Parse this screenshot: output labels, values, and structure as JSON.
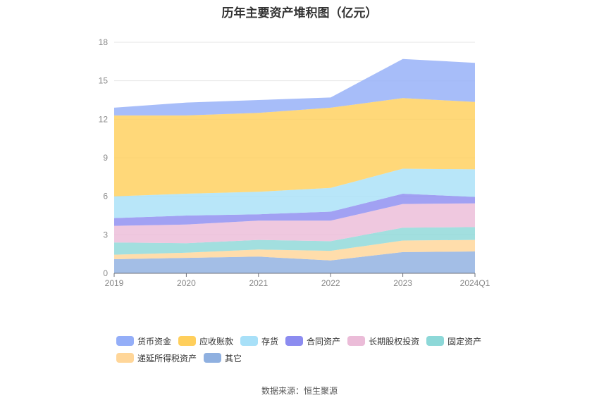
{
  "chart_data": {
    "type": "area",
    "stacked": true,
    "title": "历年主要资产堆积图（亿元）",
    "categories": [
      "2019",
      "2020",
      "2021",
      "2022",
      "2023",
      "2024Q1"
    ],
    "ylim": [
      0,
      18
    ],
    "yticks": [
      0,
      3,
      6,
      9,
      12,
      15,
      18
    ],
    "grid": true,
    "legend_position": "bottom",
    "series": [
      {
        "name": "其它",
        "color": "#8fb0e0",
        "values": [
          1.1,
          1.2,
          1.3,
          1.0,
          1.65,
          1.7
        ]
      },
      {
        "name": "递延所得税资产",
        "color": "#ffd699",
        "values": [
          0.35,
          0.4,
          0.55,
          0.75,
          0.9,
          0.9
        ]
      },
      {
        "name": "固定资产",
        "color": "#8dd8d8",
        "values": [
          0.95,
          0.75,
          0.75,
          0.75,
          1.0,
          1.0
        ]
      },
      {
        "name": "长期股权投资",
        "color": "#ebbcd8",
        "values": [
          1.3,
          1.45,
          1.5,
          1.6,
          1.85,
          1.85
        ]
      },
      {
        "name": "合同资产",
        "color": "#8c8cf0",
        "values": [
          0.6,
          0.7,
          0.5,
          0.7,
          0.8,
          0.5
        ]
      },
      {
        "name": "存货",
        "color": "#a8e0f8",
        "values": [
          1.7,
          1.7,
          1.75,
          1.85,
          1.95,
          2.15
        ]
      },
      {
        "name": "应收账款",
        "color": "#ffcf5c",
        "values": [
          6.3,
          6.1,
          6.15,
          6.25,
          5.5,
          5.25
        ]
      },
      {
        "name": "货币资金",
        "color": "#94aef8",
        "values": [
          0.6,
          1.0,
          1.0,
          0.8,
          3.05,
          3.05
        ]
      }
    ],
    "legend_order": [
      "货币资金",
      "应收账款",
      "存货",
      "合同资产",
      "长期股权投资",
      "固定资产",
      "递延所得税资产",
      "其它"
    ]
  },
  "source": "数据来源：恒生聚源"
}
